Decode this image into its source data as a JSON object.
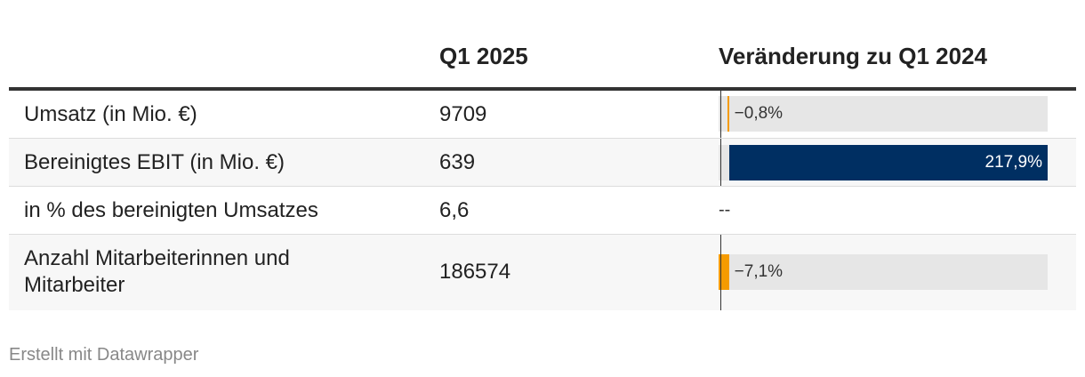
{
  "table": {
    "columns": [
      "",
      "Q1 2025",
      "Veränderung zu Q1 2024"
    ],
    "rows": [
      {
        "label": "Umsatz (in Mio. €)",
        "value": "9709",
        "change_text": "−0,8%"
      },
      {
        "label": "Bereinigtes EBIT (in Mio. €)",
        "value": "639",
        "change_text": "217,9%"
      },
      {
        "label": "in % des bereinigten Umsatzes",
        "value": "6,6",
        "change_text": "--"
      },
      {
        "label": "Anzahl Mitarbeiterinnen und Mitarbeiter",
        "value": "186574",
        "change_text": "−7,1%"
      }
    ]
  },
  "chart_data": {
    "type": "table",
    "title": "",
    "columns": [
      "",
      "Q1 2025",
      "Veränderung zu Q1 2024"
    ],
    "rows": [
      {
        "label": "Umsatz (in Mio. €)",
        "q1_2025": 9709,
        "change_pct": -0.8
      },
      {
        "label": "Bereinigtes EBIT (in Mio. €)",
        "q1_2025": 639,
        "change_pct": 217.9
      },
      {
        "label": "in % des bereinigten Umsatzes",
        "q1_2025": 6.6,
        "change_pct": null
      },
      {
        "label": "Anzahl Mitarbeiterinnen und Mitarbeiter",
        "q1_2025": 186574,
        "change_pct": -7.1
      }
    ],
    "change_bar_range": [
      -7.1,
      217.9
    ],
    "colors": {
      "negative": "#f59b00",
      "positive": "#002f62",
      "track": "#e6e6e6"
    }
  },
  "footer": {
    "credit": "Erstellt mit Datawrapper"
  }
}
